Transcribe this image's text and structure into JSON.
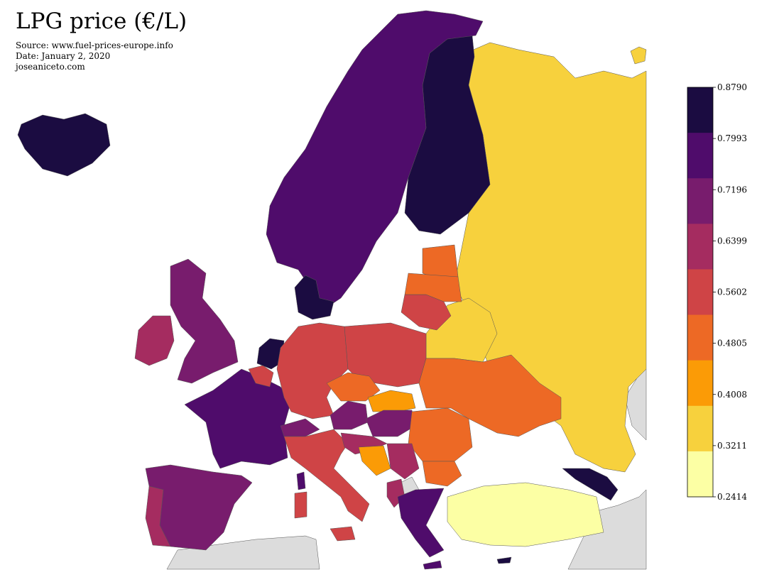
{
  "header": {
    "title": "LPG price (€/L)",
    "source": "Source: www.fuel-prices-europe.info",
    "date": "Date: January 2, 2020",
    "credit": "joseaniceto.com"
  },
  "legend": {
    "ticks": [
      "0.8790",
      "0.7993",
      "0.7196",
      "0.6399",
      "0.5602",
      "0.4805",
      "0.4008",
      "0.3211",
      "0.2414"
    ],
    "colors_top_to_bottom": [
      "#1b0c41",
      "#4f0c6b",
      "#781c6d",
      "#a52c60",
      "#cf4446",
      "#ed6925",
      "#fb9b06",
      "#f7d13d",
      "#fcffa4"
    ]
  },
  "colors": {
    "no_data": "#dcdcdc",
    "border": "#555555"
  }
}
